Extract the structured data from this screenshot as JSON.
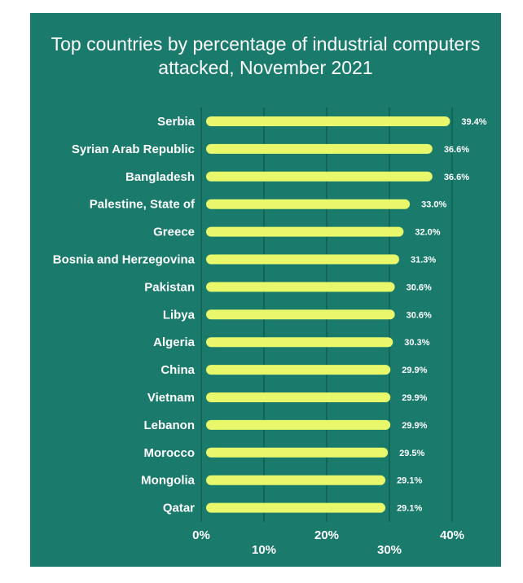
{
  "chart_data": {
    "type": "bar",
    "orientation": "horizontal",
    "title_lines": [
      "Top countries by percentage of industrial computers",
      "attacked, November 2021"
    ],
    "categories": [
      "Serbia",
      "Syrian Arab Republic",
      "Bangladesh",
      "Palestine, State of",
      "Greece",
      "Bosnia and Herzegovina",
      "Pakistan",
      "Libya",
      "Algeria",
      "China",
      "Vietnam",
      "Lebanon",
      "Morocco",
      "Mongolia",
      "Qatar"
    ],
    "values": [
      39.4,
      36.6,
      36.6,
      33.0,
      32.0,
      31.3,
      30.6,
      30.6,
      30.3,
      29.9,
      29.9,
      29.9,
      29.5,
      29.1,
      29.1
    ],
    "value_labels": [
      "39.4%",
      "36.6%",
      "36.6%",
      "33.0%",
      "32.0%",
      "31.3%",
      "30.6%",
      "30.6%",
      "30.3%",
      "29.9%",
      "29.9%",
      "29.9%",
      "29.5%",
      "29.1%",
      "29.1%"
    ],
    "x_ticks": [
      0,
      10,
      20,
      30,
      40
    ],
    "x_tick_labels": [
      "0%",
      "10%",
      "20%",
      "30%",
      "40%"
    ],
    "xlim": [
      0,
      40
    ],
    "grid": true,
    "legend": "none"
  },
  "colors": {
    "background": "#1a7a6b",
    "bar": "#e8f86a",
    "grid": "#0f5f52",
    "text": "#ffffff"
  }
}
